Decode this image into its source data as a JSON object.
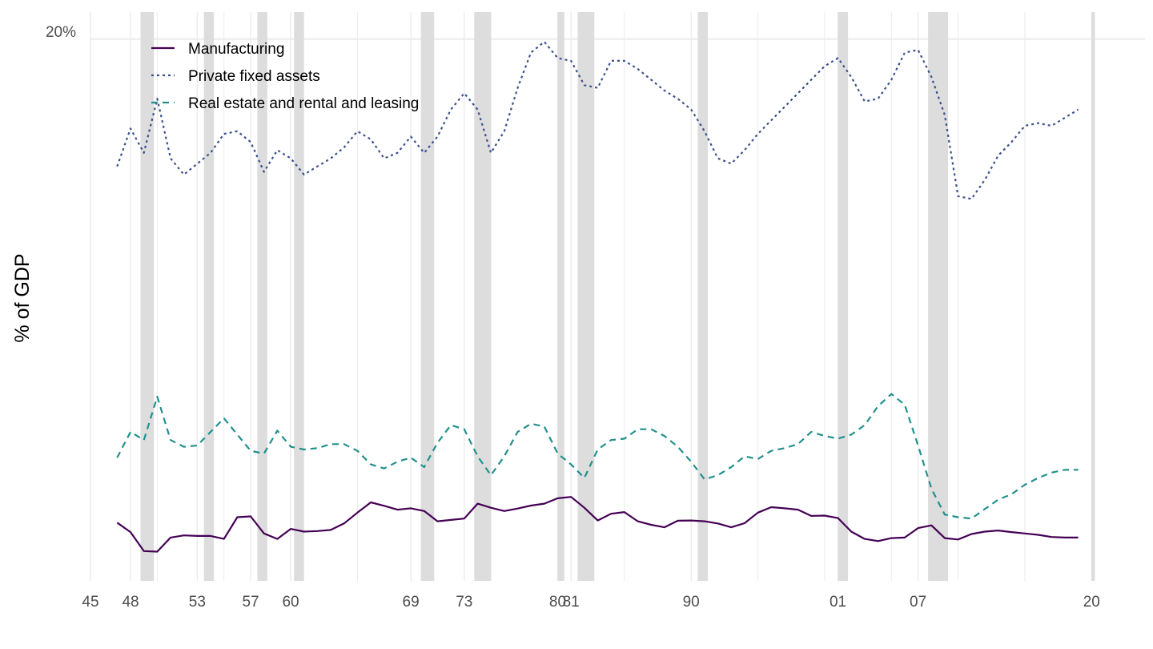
{
  "chart_data": {
    "type": "line",
    "title": "",
    "xlabel": "",
    "ylabel": "% of GDP",
    "xlim": [
      1945,
      2024
    ],
    "ylim": [
      0,
      21
    ],
    "y_tick_label": "20%",
    "y_tick_value": 20,
    "x_ticks": [
      {
        "year": 1945,
        "label": "45"
      },
      {
        "year": 1948,
        "label": "48"
      },
      {
        "year": 1953,
        "label": "53"
      },
      {
        "year": 1957,
        "label": "57"
      },
      {
        "year": 1960,
        "label": "60"
      },
      {
        "year": 1969,
        "label": "69"
      },
      {
        "year": 1973,
        "label": "73"
      },
      {
        "year": 1980,
        "label": "80"
      },
      {
        "year": 1981,
        "label": "81"
      },
      {
        "year": 1990,
        "label": "90"
      },
      {
        "year": 2001,
        "label": "01"
      },
      {
        "year": 2007,
        "label": "07"
      },
      {
        "year": 2020,
        "label": "20"
      }
    ],
    "recessions": [
      [
        1948.75,
        1949.75
      ],
      [
        1953.5,
        1954.25
      ],
      [
        1957.5,
        1958.25
      ],
      [
        1960.25,
        1961.0
      ],
      [
        1969.75,
        1970.75
      ],
      [
        1973.75,
        1975.0
      ],
      [
        1980.0,
        1980.5
      ],
      [
        1981.5,
        1982.75
      ],
      [
        1990.5,
        1991.25
      ],
      [
        2001.0,
        2001.75
      ],
      [
        2007.75,
        2009.25
      ],
      [
        2020.0,
        2020.25
      ]
    ],
    "x": [
      1947,
      1948,
      1949,
      1950,
      1951,
      1952,
      1953,
      1954,
      1955,
      1956,
      1957,
      1958,
      1959,
      1960,
      1961,
      1962,
      1963,
      1964,
      1965,
      1966,
      1967,
      1968,
      1969,
      1970,
      1971,
      1972,
      1973,
      1974,
      1975,
      1976,
      1977,
      1978,
      1979,
      1980,
      1981,
      1982,
      1983,
      1984,
      1985,
      1986,
      1987,
      1988,
      1989,
      1990,
      1991,
      1992,
      1993,
      1994,
      1995,
      1996,
      1997,
      1998,
      1999,
      2000,
      2001,
      2002,
      2003,
      2004,
      2005,
      2006,
      2007,
      2008,
      2009,
      2010,
      2011,
      2012,
      2013,
      2014,
      2015,
      2016,
      2017,
      2018,
      2019
    ],
    "series": [
      {
        "name": "Manufacturing",
        "color": "#440154",
        "dash": "solid",
        "values": [
          2.15,
          1.8,
          1.1,
          1.08,
          1.6,
          1.68,
          1.66,
          1.66,
          1.55,
          2.35,
          2.38,
          1.75,
          1.55,
          1.92,
          1.82,
          1.84,
          1.88,
          2.12,
          2.52,
          2.9,
          2.77,
          2.63,
          2.68,
          2.58,
          2.2,
          2.25,
          2.3,
          2.85,
          2.7,
          2.58,
          2.67,
          2.78,
          2.85,
          3.05,
          3.1,
          2.7,
          2.23,
          2.48,
          2.54,
          2.2,
          2.07,
          1.98,
          2.22,
          2.23,
          2.2,
          2.12,
          1.98,
          2.13,
          2.52,
          2.72,
          2.68,
          2.63,
          2.4,
          2.41,
          2.32,
          1.82,
          1.55,
          1.47,
          1.58,
          1.6,
          1.95,
          2.05,
          1.58,
          1.53,
          1.73,
          1.82,
          1.86,
          1.8,
          1.75,
          1.7,
          1.62,
          1.6,
          1.6
        ]
      },
      {
        "name": "Private fixed assets",
        "color": "#3b528b",
        "dash": "dotted",
        "values": [
          15.3,
          16.7,
          15.8,
          17.8,
          15.6,
          15.0,
          15.4,
          15.8,
          16.5,
          16.6,
          16.2,
          15.1,
          15.9,
          15.6,
          15.0,
          15.3,
          15.6,
          16.0,
          16.6,
          16.3,
          15.6,
          15.8,
          16.4,
          15.8,
          16.4,
          17.4,
          18.0,
          17.4,
          15.8,
          16.6,
          18.2,
          19.5,
          19.9,
          19.3,
          19.2,
          18.3,
          18.2,
          19.2,
          19.2,
          18.9,
          18.5,
          18.1,
          17.8,
          17.4,
          16.6,
          15.6,
          15.4,
          15.9,
          16.5,
          17.0,
          17.5,
          18.0,
          18.5,
          19.0,
          19.3,
          18.6,
          17.7,
          17.8,
          18.5,
          19.5,
          19.6,
          18.6,
          17.2,
          14.2,
          14.1,
          14.8,
          15.7,
          16.2,
          16.8,
          16.9,
          16.8,
          17.1,
          17.4
        ]
      },
      {
        "name": "Real estate and rental and leasing",
        "color": "#21908c",
        "dash": "dashed",
        "values": [
          4.55,
          5.5,
          5.2,
          6.8,
          5.2,
          4.95,
          5.0,
          5.5,
          6.0,
          5.4,
          4.8,
          4.7,
          5.55,
          4.95,
          4.85,
          4.9,
          5.05,
          5.05,
          4.8,
          4.3,
          4.15,
          4.4,
          4.55,
          4.2,
          5.1,
          5.75,
          5.6,
          4.6,
          3.9,
          4.6,
          5.5,
          5.8,
          5.7,
          4.7,
          4.3,
          3.8,
          4.85,
          5.2,
          5.25,
          5.6,
          5.6,
          5.35,
          4.95,
          4.4,
          3.75,
          3.9,
          4.2,
          4.6,
          4.5,
          4.8,
          4.9,
          5.05,
          5.5,
          5.35,
          5.25,
          5.4,
          5.75,
          6.45,
          6.9,
          6.5,
          5.0,
          3.4,
          2.45,
          2.35,
          2.3,
          2.65,
          3.0,
          3.2,
          3.55,
          3.8,
          4.0,
          4.1,
          4.1
        ]
      }
    ],
    "legend": {
      "position": "top-left",
      "entries": [
        "Manufacturing",
        "Private fixed assets",
        "Real estate and rental and leasing"
      ]
    },
    "grid": true,
    "recession_color": "#dddddd"
  }
}
